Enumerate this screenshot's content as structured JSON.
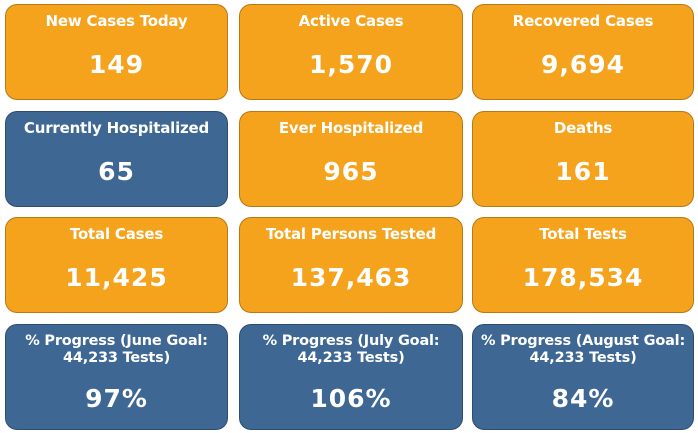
{
  "colors": {
    "orange": "#F5A21C",
    "blue": "#3E6793",
    "text": "#FFFFFF"
  },
  "cards": [
    {
      "label": "New Cases Today",
      "value": "149",
      "color": "orange"
    },
    {
      "label": "Active Cases",
      "value": "1,570",
      "color": "orange"
    },
    {
      "label": "Recovered Cases",
      "value": "9,694",
      "color": "orange"
    },
    {
      "label": "Currently Hospitalized",
      "value": "65",
      "color": "blue"
    },
    {
      "label": "Ever Hospitalized",
      "value": "965",
      "color": "orange"
    },
    {
      "label": "Deaths",
      "value": "161",
      "color": "orange"
    },
    {
      "label": "Total Cases",
      "value": "11,425",
      "color": "orange"
    },
    {
      "label": "Total Persons Tested",
      "value": "137,463",
      "color": "orange"
    },
    {
      "label": "Total Tests",
      "value": "178,534",
      "color": "orange"
    },
    {
      "label": "% Progress (June Goal: 44,233 Tests)",
      "value": "97%",
      "color": "blue"
    },
    {
      "label": "% Progress (July Goal: 44,233 Tests)",
      "value": "106%",
      "color": "blue"
    },
    {
      "label": "% Progress (August Goal: 44,233 Tests)",
      "value": "84%",
      "color": "blue"
    }
  ]
}
